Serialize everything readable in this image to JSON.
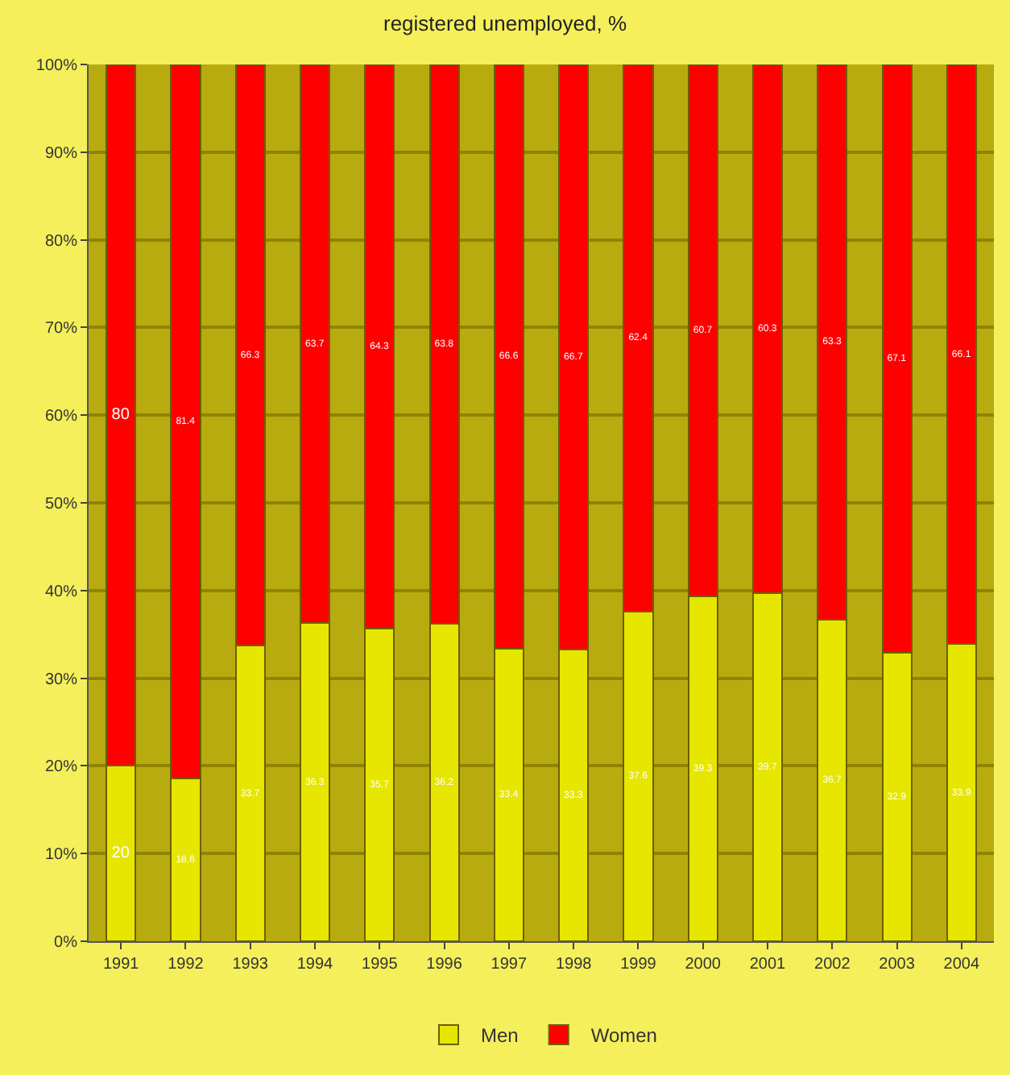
{
  "chart_data": {
    "type": "bar",
    "title": "registered unemployed, %",
    "stacked": true,
    "data_labels": true,
    "legend": "bottom",
    "grid": "y",
    "categories": [
      "1991",
      "1992",
      "1993",
      "1994",
      "1995",
      "1996",
      "1997",
      "1998",
      "1999",
      "2000",
      "2001",
      "2002",
      "2003",
      "2004"
    ],
    "series": [
      {
        "name": "Men",
        "color": "#e6e600",
        "values": [
          20,
          18.6,
          33.7,
          36.3,
          35.7,
          36.2,
          33.4,
          33.3,
          37.6,
          39.3,
          39.7,
          36.7,
          32.9,
          33.9
        ]
      },
      {
        "name": "Women",
        "color": "#ff0000",
        "values": [
          80,
          81.4,
          66.3,
          63.7,
          64.3,
          63.8,
          66.6,
          66.7,
          62.4,
          60.7,
          60.3,
          63.3,
          67.1,
          66.1
        ]
      }
    ],
    "ylim": [
      0,
      100
    ],
    "yticks": [
      {
        "value": 0,
        "label": "0%"
      },
      {
        "value": 10,
        "label": "10%"
      },
      {
        "value": 20,
        "label": "20%"
      },
      {
        "value": 30,
        "label": "30%"
      },
      {
        "value": 40,
        "label": "40%"
      },
      {
        "value": 50,
        "label": "50%"
      },
      {
        "value": 60,
        "label": "60%"
      },
      {
        "value": 70,
        "label": "70%"
      },
      {
        "value": 80,
        "label": "80%"
      },
      {
        "value": 90,
        "label": "90%"
      },
      {
        "value": 100,
        "label": "100%"
      }
    ]
  }
}
